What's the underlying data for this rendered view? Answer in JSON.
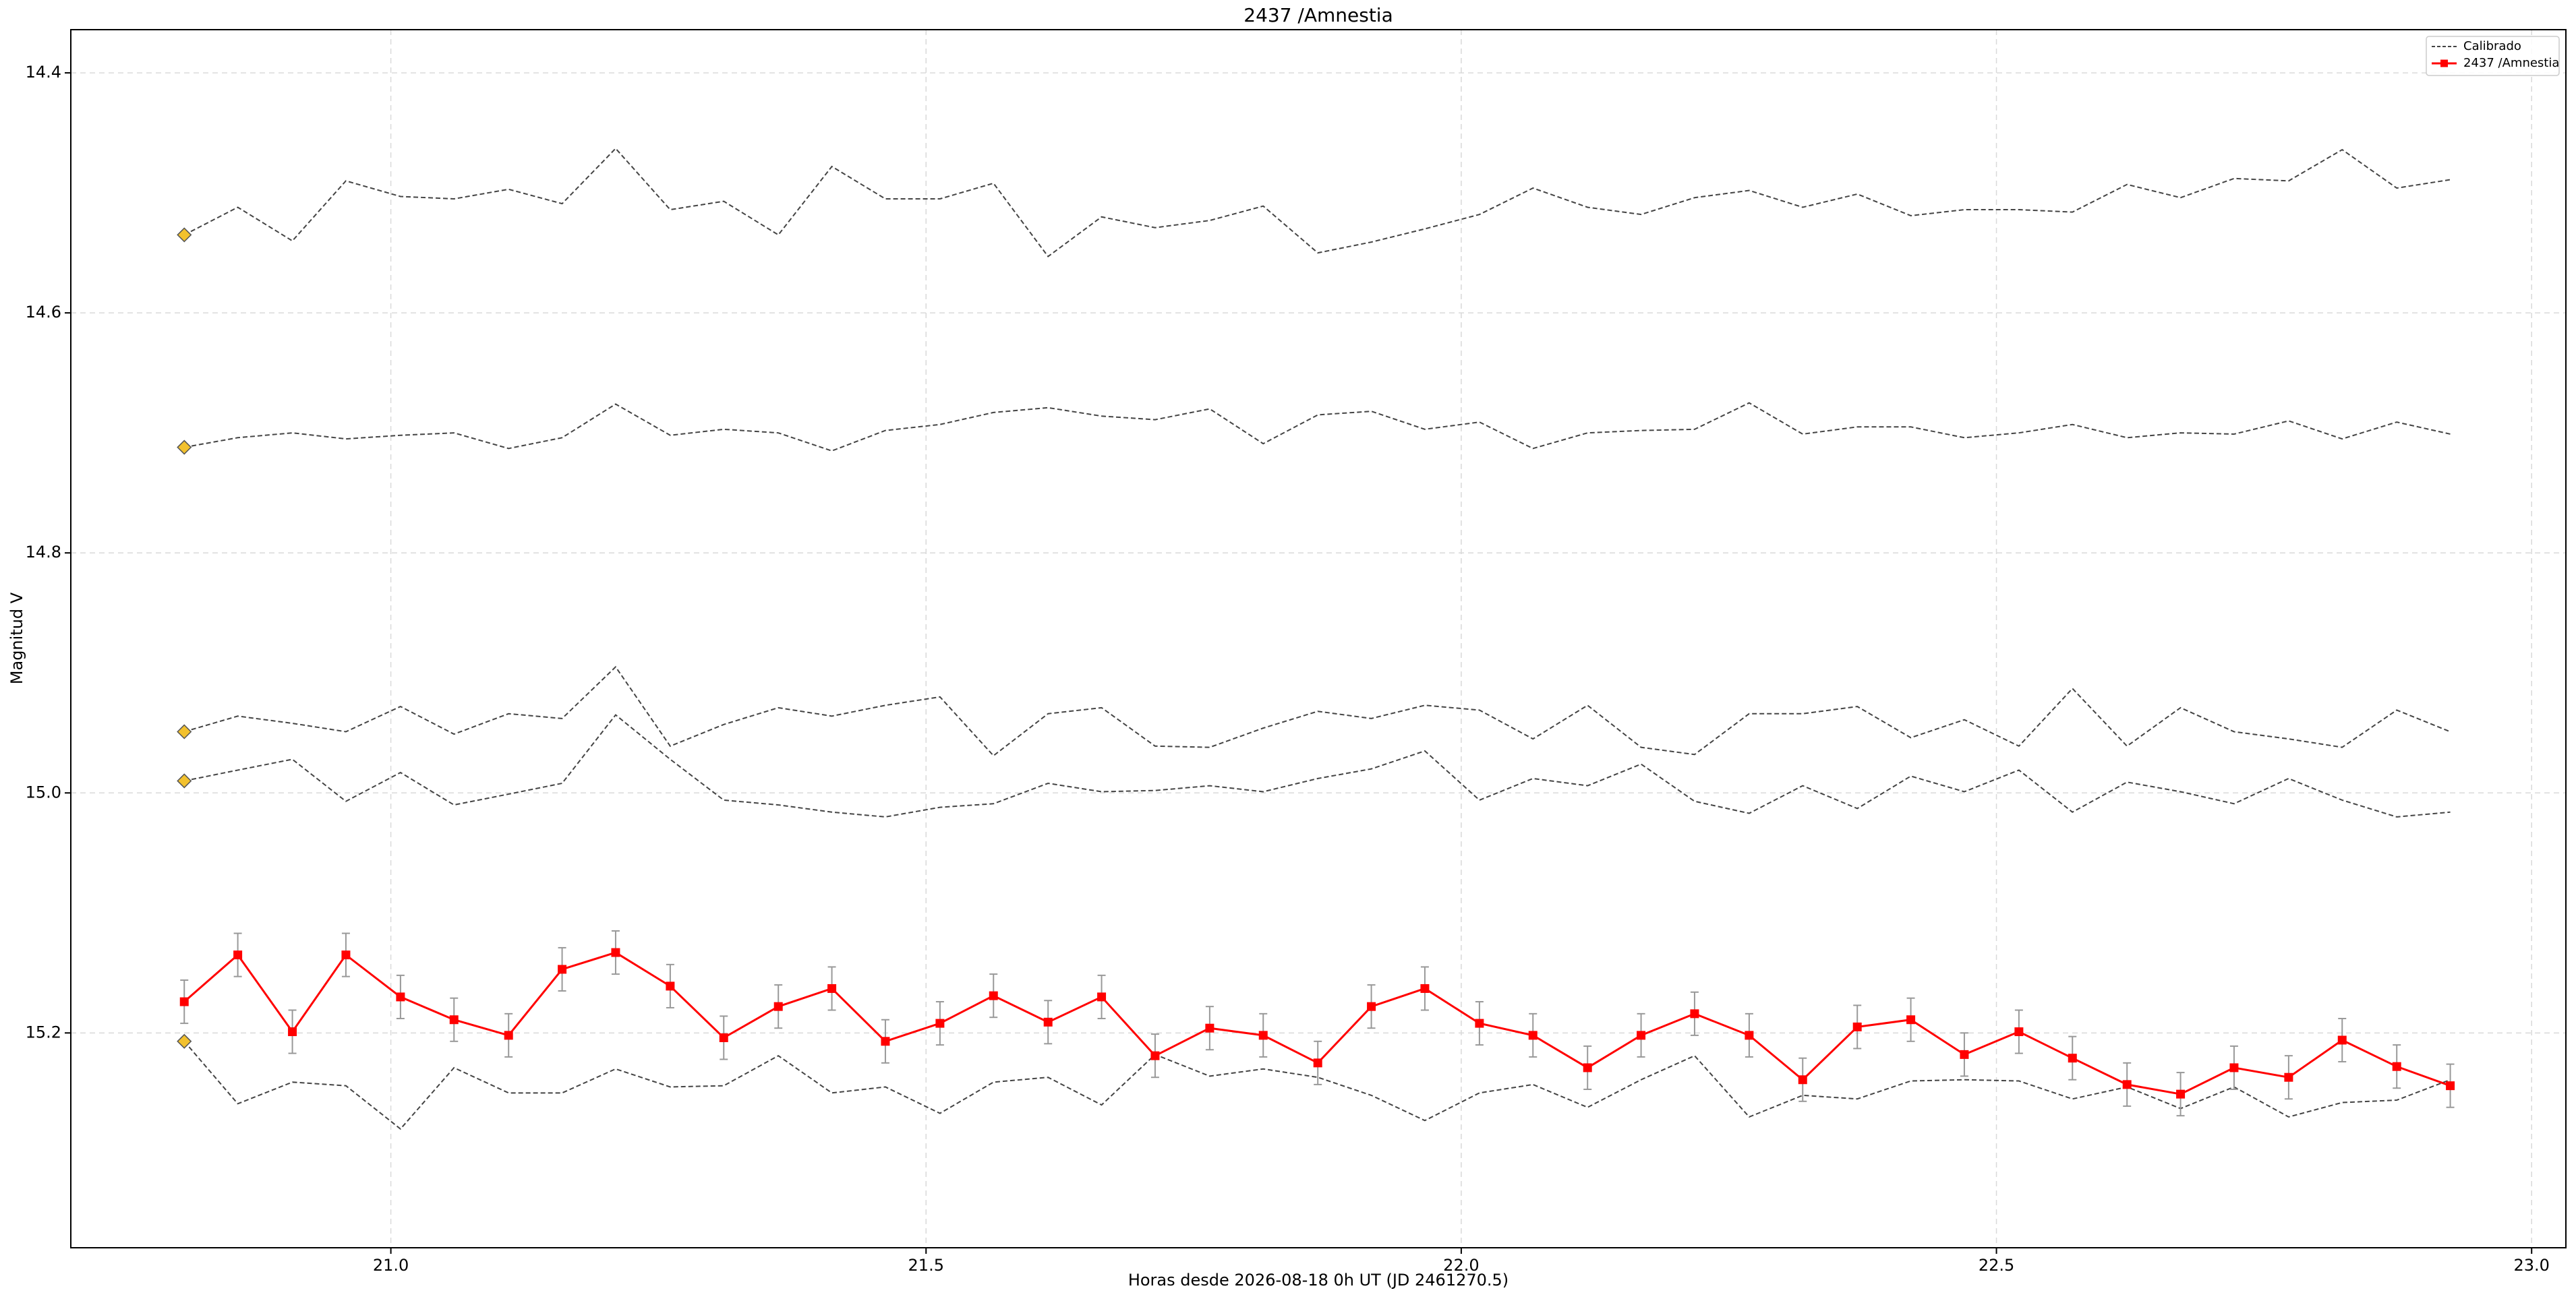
{
  "chart_data": {
    "type": "line",
    "title": "2437 /Amnestia",
    "x_label": "Horas desde 2026-08-18 0h UT (JD 2461270.5)",
    "y_label": "Magnitud V",
    "x": [
      20.807,
      20.857,
      20.908,
      20.958,
      21.009,
      21.059,
      21.11,
      21.16,
      21.21,
      21.261,
      21.311,
      21.362,
      21.412,
      21.462,
      21.513,
      21.563,
      21.614,
      21.664,
      21.714,
      21.765,
      21.815,
      21.866,
      21.916,
      21.966,
      22.017,
      22.067,
      22.118,
      22.168,
      22.218,
      22.269,
      22.319,
      22.37,
      22.42,
      22.47,
      22.521,
      22.571,
      22.622,
      22.672,
      22.722,
      22.773,
      22.823,
      22.874,
      22.924
    ],
    "xlim": [
      20.701,
      23.032
    ],
    "ylim": [
      15.379,
      14.364
    ],
    "xticks": [
      {
        "value": 21,
        "label": "21.0"
      },
      21.5,
      {
        "value": 22,
        "label": "22.0"
      },
      22.5,
      {
        "value": 23,
        "label": "23.0"
      }
    ],
    "yticks": [
      14.4,
      14.6,
      14.8,
      {
        "value": 15,
        "label": "15.0"
      },
      15.2
    ],
    "grid": true,
    "legend": "upper right",
    "comparison": {
      "name": "Calibrado",
      "color": "#444444",
      "marker_color": "#f2c12e",
      "lines": [
        [
          14.535,
          14.512,
          14.54,
          14.49,
          14.503,
          14.505,
          14.497,
          14.509,
          14.463,
          14.514,
          14.507,
          14.535,
          14.478,
          14.505,
          14.505,
          14.492,
          14.553,
          14.52,
          14.529,
          14.523,
          14.511,
          14.55,
          14.541,
          14.53,
          14.518,
          14.496,
          14.512,
          14.518,
          14.504,
          14.498,
          14.512,
          14.501,
          14.519,
          14.514,
          14.514,
          14.516,
          14.493,
          14.504,
          14.488,
          14.49,
          14.464,
          14.496,
          14.489
        ],
        [
          14.712,
          14.704,
          14.7,
          14.705,
          14.702,
          14.7,
          14.713,
          14.704,
          14.676,
          14.702,
          14.697,
          14.7,
          14.715,
          14.698,
          14.693,
          14.683,
          14.679,
          14.686,
          14.689,
          14.68,
          14.709,
          14.685,
          14.682,
          14.697,
          14.691,
          14.713,
          14.7,
          14.698,
          14.697,
          14.675,
          14.701,
          14.695,
          14.695,
          14.704,
          14.7,
          14.693,
          14.704,
          14.7,
          14.701,
          14.69,
          14.705,
          14.691,
          14.701
        ],
        [
          14.949,
          14.936,
          14.942,
          14.949,
          14.928,
          14.951,
          14.934,
          14.938,
          14.895,
          14.961,
          14.943,
          14.929,
          14.936,
          14.927,
          14.92,
          14.969,
          14.934,
          14.929,
          14.961,
          14.962,
          14.946,
          14.932,
          14.938,
          14.927,
          14.931,
          14.955,
          14.927,
          14.962,
          14.968,
          14.934,
          14.934,
          14.928,
          14.954,
          14.939,
          14.961,
          14.913,
          14.961,
          14.929,
          14.949,
          14.955,
          14.962,
          14.931,
          14.949
        ],
        [
          14.99,
          14.981,
          14.972,
          15.007,
          14.983,
          15.01,
          15.001,
          14.992,
          14.935,
          14.972,
          15.006,
          15.01,
          15.016,
          15.02,
          15.012,
          15.009,
          14.992,
          14.999,
          14.998,
          14.994,
          14.999,
          14.988,
          14.98,
          14.965,
          15.006,
          14.988,
          14.994,
          14.976,
          15.007,
          15.017,
          14.994,
          15.013,
          14.986,
          14.999,
          14.981,
          15.016,
          14.991,
          14.999,
          15.009,
          14.988,
          15.006,
          15.02,
          15.016
        ],
        [
          15.207,
          15.259,
          15.241,
          15.244,
          15.28,
          15.229,
          15.25,
          15.25,
          15.23,
          15.245,
          15.244,
          15.219,
          15.25,
          15.245,
          15.267,
          15.241,
          15.237,
          15.26,
          15.218,
          15.236,
          15.23,
          15.237,
          15.252,
          15.273,
          15.25,
          15.243,
          15.262,
          15.239,
          15.219,
          15.27,
          15.252,
          15.255,
          15.24,
          15.239,
          15.24,
          15.255,
          15.245,
          15.263,
          15.245,
          15.27,
          15.258,
          15.256,
          15.239
        ]
      ]
    },
    "series": [
      {
        "name": "2437 /Amnestia",
        "color": "#ff0000",
        "error_color": "#999999",
        "values": [
          15.174,
          15.135,
          15.199,
          15.135,
          15.17,
          15.189,
          15.202,
          15.147,
          15.133,
          15.161,
          15.204,
          15.178,
          15.163,
          15.207,
          15.192,
          15.169,
          15.191,
          15.17,
          15.219,
          15.196,
          15.202,
          15.225,
          15.178,
          15.163,
          15.192,
          15.202,
          15.229,
          15.202,
          15.184,
          15.202,
          15.239,
          15.195,
          15.189,
          15.218,
          15.199,
          15.221,
          15.243,
          15.251,
          15.229,
          15.237,
          15.206,
          15.228,
          15.244
        ],
        "errors": [
          0.018,
          0.018,
          0.018,
          0.018,
          0.018,
          0.018,
          0.018,
          0.018,
          0.018,
          0.018,
          0.018,
          0.018,
          0.018,
          0.018,
          0.018,
          0.018,
          0.018,
          0.018,
          0.018,
          0.018,
          0.018,
          0.018,
          0.018,
          0.018,
          0.018,
          0.018,
          0.018,
          0.018,
          0.018,
          0.018,
          0.018,
          0.018,
          0.018,
          0.018,
          0.018,
          0.018,
          0.018,
          0.018,
          0.018,
          0.018,
          0.018,
          0.018,
          0.018
        ]
      }
    ]
  }
}
